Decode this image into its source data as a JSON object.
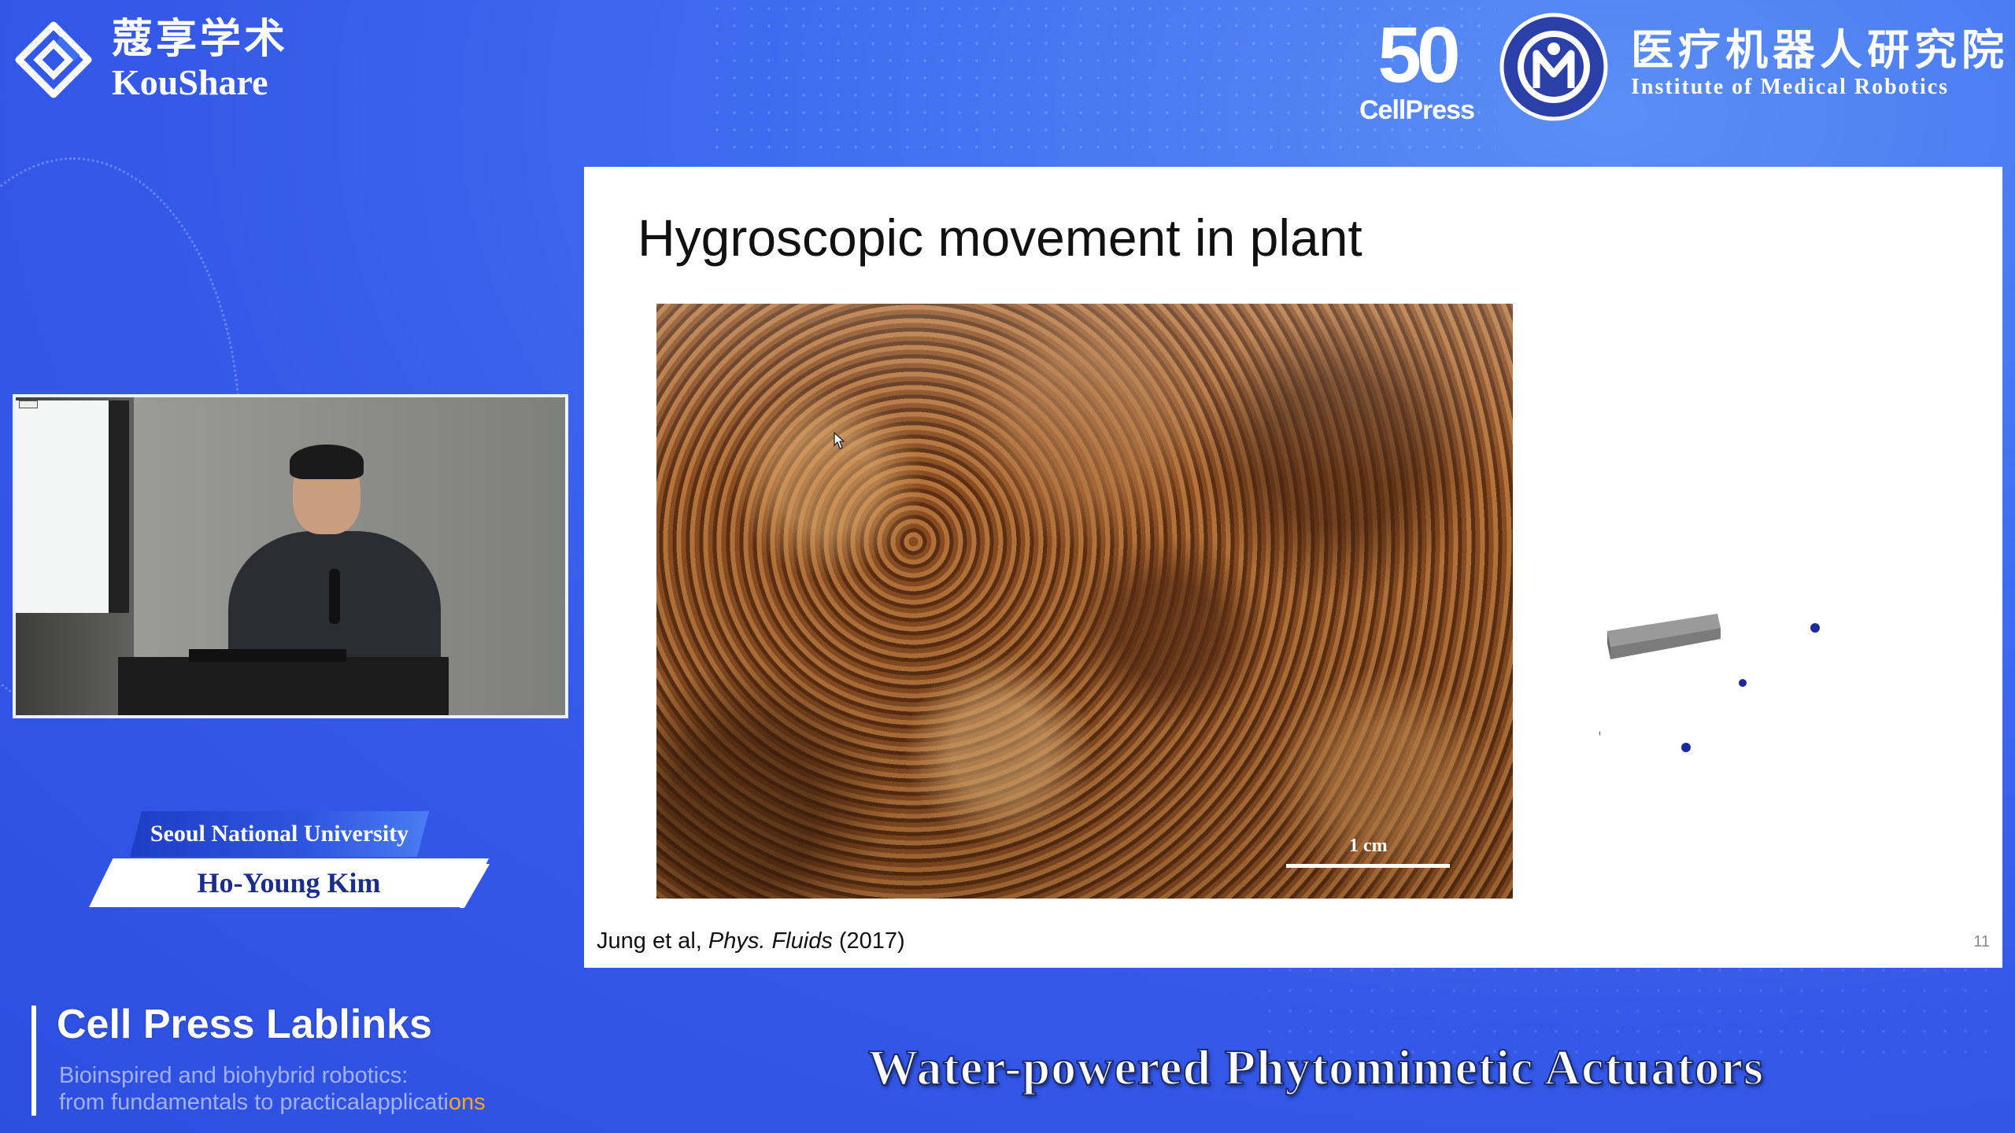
{
  "brand": {
    "name_cn": "蔻享学术",
    "name_en": "KouShare"
  },
  "top_logos": {
    "cellpress_50_number": "50",
    "cellpress_50_text": "CellPress",
    "institute_cn": "医疗机器人研究院",
    "institute_en": "Institute of Medical Robotics"
  },
  "slide": {
    "title": "Hygroscopic movement in plant",
    "scale_label": "1 cm",
    "citation_authors": "Jung et al, ",
    "citation_journal": "Phys. Fluids",
    "citation_year": " (2017)",
    "page_number": "11"
  },
  "speaker": {
    "affiliation": "Seoul National University",
    "name": "Ho-Young Kim"
  },
  "series": {
    "title": "Cell Press Lablinks",
    "subtitle_line1": "Bioinspired and biohybrid robotics:",
    "subtitle_line2_main": "from fundamentals to practicalapplicati",
    "subtitle_line2_highlight": "ons"
  },
  "talk": {
    "title": "Water-powered Phytomimetic Actuators"
  },
  "colors": {
    "background": "#3f6ef0",
    "speaker_name": "#1a2d8c",
    "highlight": "#f5a623",
    "particle": "#1a2a9c"
  }
}
